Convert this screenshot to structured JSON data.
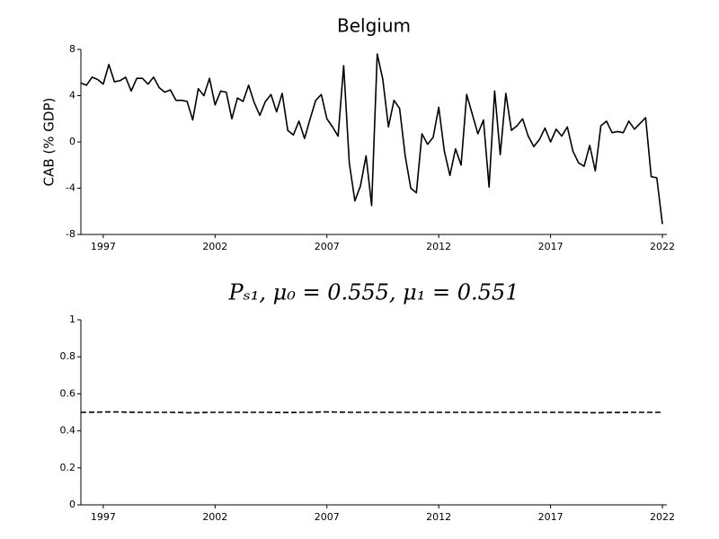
{
  "chart_data": [
    {
      "type": "line",
      "title": "Belgium",
      "ylabel": "CAB (% GDP)",
      "color": "#000000",
      "linestyle": "solid",
      "x": [
        1996,
        1996.25,
        1996.5,
        1996.75,
        1997,
        1997.25,
        1997.5,
        1997.75,
        1998,
        1998.25,
        1998.5,
        1998.75,
        1999,
        1999.25,
        1999.5,
        1999.75,
        2000,
        2000.25,
        2000.5,
        2000.75,
        2001,
        2001.25,
        2001.5,
        2001.75,
        2002,
        2002.25,
        2002.5,
        2002.75,
        2003,
        2003.25,
        2003.5,
        2003.75,
        2004,
        2004.25,
        2004.5,
        2004.75,
        2005,
        2005.25,
        2005.5,
        2005.75,
        2006,
        2006.25,
        2006.5,
        2006.75,
        2007,
        2007.25,
        2007.5,
        2007.75,
        2008,
        2008.25,
        2008.5,
        2008.75,
        2009,
        2009.25,
        2009.5,
        2009.75,
        2010,
        2010.25,
        2010.5,
        2010.75,
        2011,
        2011.25,
        2011.5,
        2011.75,
        2012,
        2012.25,
        2012.5,
        2012.75,
        2013,
        2013.25,
        2013.5,
        2013.75,
        2014,
        2014.25,
        2014.5,
        2014.75,
        2015,
        2015.25,
        2015.5,
        2015.75,
        2016,
        2016.25,
        2016.5,
        2016.75,
        2017,
        2017.25,
        2017.5,
        2017.75,
        2018,
        2018.25,
        2018.5,
        2018.75,
        2019,
        2019.25,
        2019.5,
        2019.75,
        2020,
        2020.25,
        2020.5,
        2020.75,
        2021,
        2021.25,
        2021.5,
        2021.75,
        2022
      ],
      "values": [
        5.1,
        4.9,
        5.6,
        5.4,
        5.0,
        6.7,
        5.2,
        5.3,
        5.6,
        4.4,
        5.5,
        5.5,
        5.0,
        5.6,
        4.7,
        4.3,
        4.5,
        3.6,
        3.6,
        3.5,
        1.9,
        4.6,
        4.0,
        5.5,
        3.2,
        4.4,
        4.3,
        2.0,
        3.8,
        3.5,
        4.9,
        3.4,
        2.3,
        3.5,
        4.1,
        2.6,
        4.2,
        1.0,
        0.6,
        1.8,
        0.3,
        2.0,
        3.6,
        4.1,
        2.0,
        1.3,
        0.5,
        6.6,
        -1.8,
        -5.1,
        -3.8,
        -1.2,
        -5.5,
        7.6,
        5.4,
        1.3,
        3.6,
        2.9,
        -1.2,
        -4.0,
        -4.4,
        0.7,
        -0.2,
        0.4,
        3.0,
        -0.8,
        -2.9,
        -0.6,
        -2.0,
        4.1,
        2.4,
        0.7,
        1.9,
        -3.9,
        4.4,
        -1.1,
        4.2,
        1.0,
        1.4,
        2.0,
        0.5,
        -0.4,
        0.2,
        1.2,
        0.0,
        1.1,
        0.5,
        1.3,
        -0.8,
        -1.8,
        -2.1,
        -0.3,
        -2.5,
        1.4,
        1.8,
        0.8,
        0.9,
        0.8,
        1.8,
        1.1,
        1.6,
        2.1,
        -3.0,
        -3.1,
        -7.1
      ],
      "xlim": [
        1996,
        2022.2
      ],
      "xticks": [
        1997,
        2002,
        2007,
        2012,
        2017,
        2022
      ],
      "ylim": [
        -8,
        8
      ],
      "yticks": [
        -8,
        -4,
        0,
        4,
        8
      ]
    },
    {
      "type": "line",
      "title": "Pₛ₁, μ₀ = 0.555, μ₁ = 0.551",
      "color": "#000000",
      "linestyle": "dashed",
      "x": [
        1996,
        1996.25,
        1996.5,
        1996.75,
        1997,
        1997.25,
        1997.5,
        1997.75,
        1998,
        1998.25,
        1998.5,
        1998.75,
        1999,
        1999.25,
        1999.5,
        1999.75,
        2000,
        2000.25,
        2000.5,
        2000.75,
        2001,
        2001.25,
        2001.5,
        2001.75,
        2002,
        2002.25,
        2002.5,
        2002.75,
        2003,
        2003.25,
        2003.5,
        2003.75,
        2004,
        2004.25,
        2004.5,
        2004.75,
        2005,
        2005.25,
        2005.5,
        2005.75,
        2006,
        2006.25,
        2006.5,
        2006.75,
        2007,
        2007.25,
        2007.5,
        2007.75,
        2008,
        2008.25,
        2008.5,
        2008.75,
        2009,
        2009.25,
        2009.5,
        2009.75,
        2010,
        2010.25,
        2010.5,
        2010.75,
        2011,
        2011.25,
        2011.5,
        2011.75,
        2012,
        2012.25,
        2012.5,
        2012.75,
        2013,
        2013.25,
        2013.5,
        2013.75,
        2014,
        2014.25,
        2014.5,
        2014.75,
        2015,
        2015.25,
        2015.5,
        2015.75,
        2016,
        2016.25,
        2016.5,
        2016.75,
        2017,
        2017.25,
        2017.5,
        2017.75,
        2018,
        2018.25,
        2018.5,
        2018.75,
        2019,
        2019.25,
        2019.5,
        2019.75,
        2020,
        2020.25,
        2020.5,
        2020.75,
        2021,
        2021.25,
        2021.5,
        2021.75,
        2022
      ],
      "values": [
        0.5,
        0.5,
        0.501,
        0.501,
        0.502,
        0.502,
        0.502,
        0.502,
        0.501,
        0.501,
        0.5,
        0.5,
        0.5,
        0.5,
        0.5,
        0.5,
        0.5,
        0.499,
        0.499,
        0.498,
        0.498,
        0.498,
        0.499,
        0.5,
        0.5,
        0.5,
        0.5,
        0.5,
        0.5,
        0.5,
        0.5,
        0.5,
        0.5,
        0.5,
        0.5,
        0.499,
        0.499,
        0.499,
        0.499,
        0.5,
        0.5,
        0.5,
        0.501,
        0.502,
        0.502,
        0.502,
        0.501,
        0.501,
        0.5,
        0.5,
        0.5,
        0.5,
        0.5,
        0.5,
        0.5,
        0.5,
        0.5,
        0.5,
        0.5,
        0.5,
        0.5,
        0.5,
        0.5,
        0.5,
        0.5,
        0.5,
        0.5,
        0.5,
        0.5,
        0.5,
        0.5,
        0.5,
        0.5,
        0.5,
        0.5,
        0.5,
        0.5,
        0.5,
        0.5,
        0.5,
        0.5,
        0.5,
        0.5,
        0.5,
        0.5,
        0.5,
        0.5,
        0.5,
        0.5,
        0.499,
        0.499,
        0.498,
        0.498,
        0.498,
        0.499,
        0.499,
        0.499,
        0.499,
        0.5,
        0.5,
        0.5,
        0.5,
        0.5,
        0.5,
        0.5
      ],
      "xlim": [
        1996,
        2022.2
      ],
      "xticks": [
        1997,
        2002,
        2007,
        2012,
        2017,
        2022
      ],
      "ylim": [
        0,
        1
      ],
      "yticks": [
        0,
        0.2,
        0.4,
        0.6,
        0.8,
        1
      ]
    }
  ]
}
